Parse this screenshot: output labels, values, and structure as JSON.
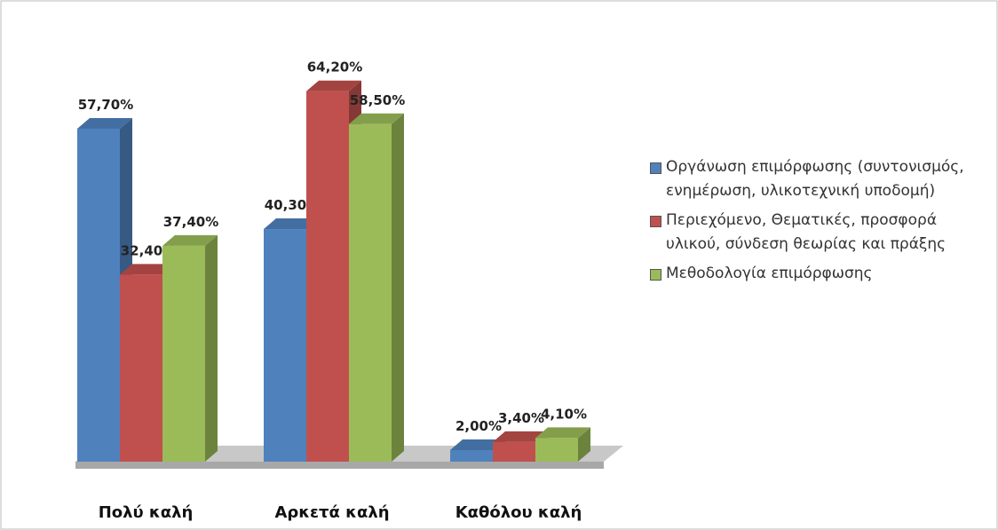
{
  "chart_data": {
    "type": "bar3d",
    "categories": [
      "Πολύ καλή",
      "Αρκετά καλή",
      "Καθόλου καλή"
    ],
    "series": [
      {
        "name": "Οργάνωση επιμόρφωσης (συντονισμός, ενημέρωση, υλικοτεχνική υποδομή)",
        "color": "#4f81bd",
        "values": [
          57.7,
          40.3,
          2.0
        ],
        "value_labels": [
          "57,70%",
          "40,30%",
          "2,00%"
        ]
      },
      {
        "name": "Περιεχόμενο, Θεματικές, προσφορά υλικού, σύνδεση θεωρίας και πράξης",
        "color": "#c0504d",
        "values": [
          32.4,
          64.2,
          3.4
        ],
        "value_labels": [
          "32,40%",
          "64,20%",
          "3,40%"
        ]
      },
      {
        "name": "Μεθοδολογία επιμόρφωσης",
        "color": "#9bbb59",
        "values": [
          37.4,
          58.5,
          4.1
        ],
        "value_labels": [
          "37,40%",
          "58,50%",
          "4,10%"
        ]
      }
    ]
  }
}
